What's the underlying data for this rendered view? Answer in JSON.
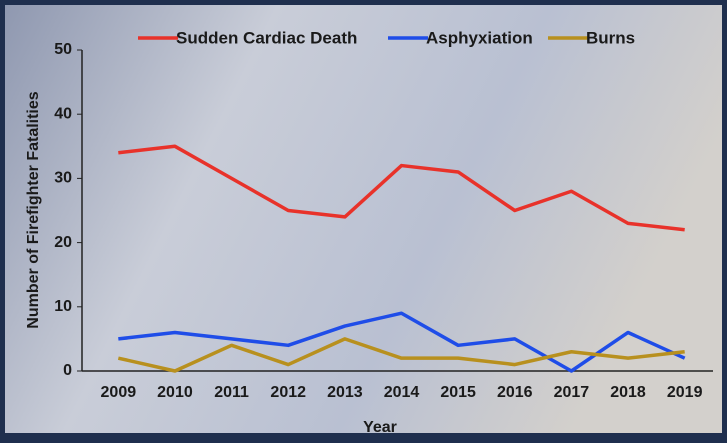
{
  "chart_data": {
    "type": "line",
    "x_label": "Year",
    "y_label": "Number of Firefighter Fatalities",
    "categories": [
      "2009",
      "2010",
      "2011",
      "2012",
      "2013",
      "2014",
      "2015",
      "2016",
      "2017",
      "2018",
      "2019"
    ],
    "series": [
      {
        "name": "Sudden Cardiac Death",
        "color": "#e8322a",
        "values": [
          34,
          35,
          30,
          25,
          24,
          32,
          31,
          25,
          28,
          23,
          22
        ]
      },
      {
        "name": "Asphyxiation",
        "color": "#1f4de8",
        "values": [
          5,
          6,
          5,
          4,
          7,
          9,
          4,
          5,
          0,
          6,
          2
        ]
      },
      {
        "name": "Burns",
        "color": "#b8901e",
        "values": [
          2,
          0,
          4,
          1,
          5,
          2,
          2,
          1,
          3,
          2,
          3
        ]
      }
    ],
    "ylim": [
      0,
      50
    ],
    "yticks": [
      0,
      10,
      20,
      30,
      40,
      50
    ]
  }
}
